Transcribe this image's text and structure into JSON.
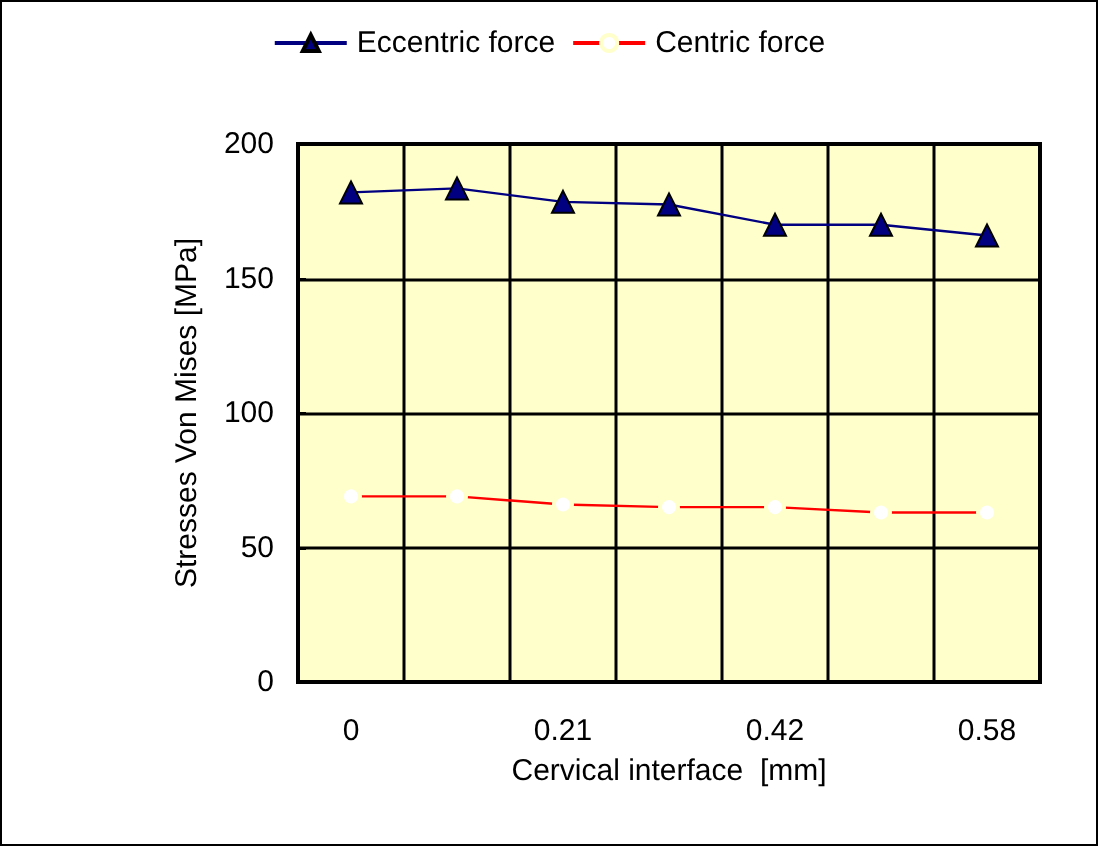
{
  "chart_data": {
    "type": "line",
    "xlabel": "Cervical interface  [mm]",
    "ylabel": "Stresses Von Mises [MPa]",
    "categories": [
      "0",
      null,
      "0.21",
      null,
      "0.42",
      null,
      "0.58"
    ],
    "series": [
      {
        "name": "Eccentric force",
        "color": "#000080",
        "marker": "triangle",
        "values": [
          182,
          183.5,
          178.5,
          177.5,
          170,
          170,
          166
        ]
      },
      {
        "name": "Centric force",
        "color": "#ff0000",
        "marker": "circle",
        "values": [
          69,
          69,
          66,
          65,
          65,
          63,
          63
        ]
      }
    ],
    "ylim": [
      0,
      200
    ],
    "yticks": [
      0,
      50,
      100,
      150,
      200
    ],
    "grid": true,
    "legend": "top"
  }
}
